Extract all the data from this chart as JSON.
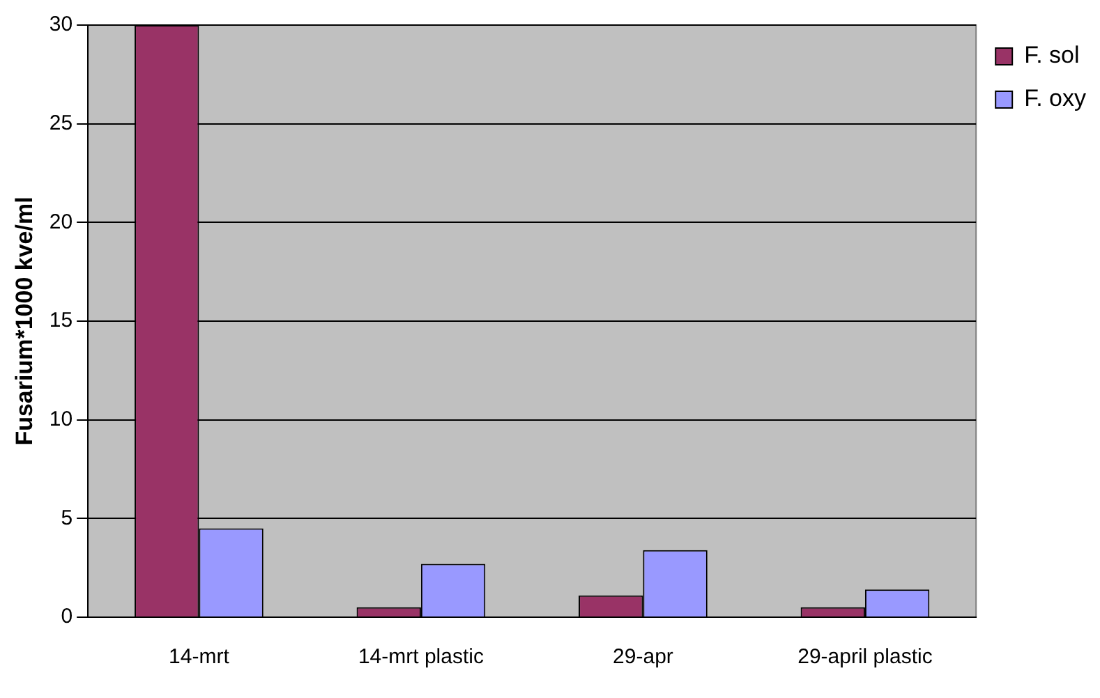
{
  "chart_data": {
    "type": "bar",
    "ylabel": "Fusarium*1000 kve/ml",
    "categories": [
      "14-mrt",
      "14-mrt plastic",
      "29-apr",
      "29-april plastic"
    ],
    "series": [
      {
        "name": "F. sol",
        "color": "#993366",
        "values": [
          30,
          0.5,
          1.1,
          0.5
        ]
      },
      {
        "name": "F. oxy",
        "color": "#9999ff",
        "values": [
          4.5,
          2.7,
          3.4,
          1.4
        ]
      }
    ],
    "ylim": [
      0,
      30
    ],
    "yticks": [
      0,
      5,
      10,
      15,
      20,
      25,
      30
    ],
    "grid": "y",
    "legend": "top right"
  }
}
